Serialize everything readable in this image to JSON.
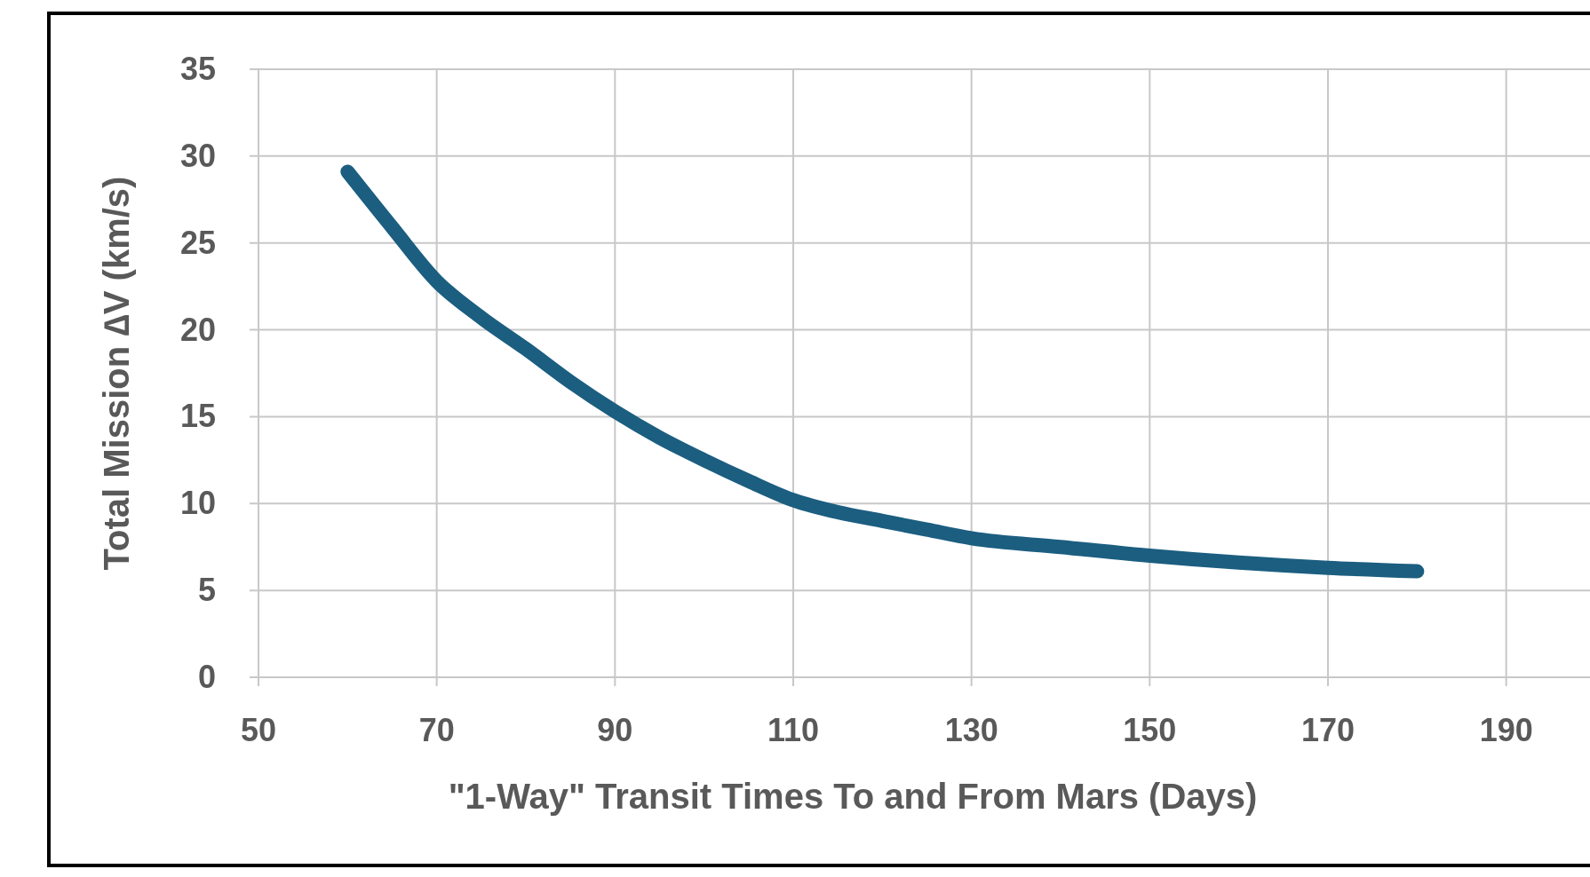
{
  "chart_data": {
    "type": "line",
    "xlabel": "\"1-Way\" Transit Times To and From Mars (Days)",
    "ylabel": "Total Mission ∆V (km/s)",
    "xlim": [
      50,
      200
    ],
    "xticks": [
      50,
      70,
      90,
      110,
      130,
      150,
      170,
      190
    ],
    "ylim": [
      0,
      35
    ],
    "yticks": [
      0,
      5,
      10,
      15,
      20,
      25,
      30,
      35
    ],
    "grid": true,
    "series": [
      {
        "color": "#1b5e80",
        "x": [
          60,
          65,
          70,
          75,
          80,
          85,
          90,
          95,
          100,
          105,
          110,
          115,
          120,
          125,
          130,
          140,
          150,
          160,
          170,
          180
        ],
        "values": [
          29.1,
          25.9,
          22.8,
          20.7,
          18.9,
          17.0,
          15.3,
          13.8,
          12.5,
          11.3,
          10.2,
          9.5,
          9.0,
          8.5,
          8.0,
          7.5,
          7.0,
          6.6,
          6.3,
          6.1
        ]
      }
    ]
  }
}
